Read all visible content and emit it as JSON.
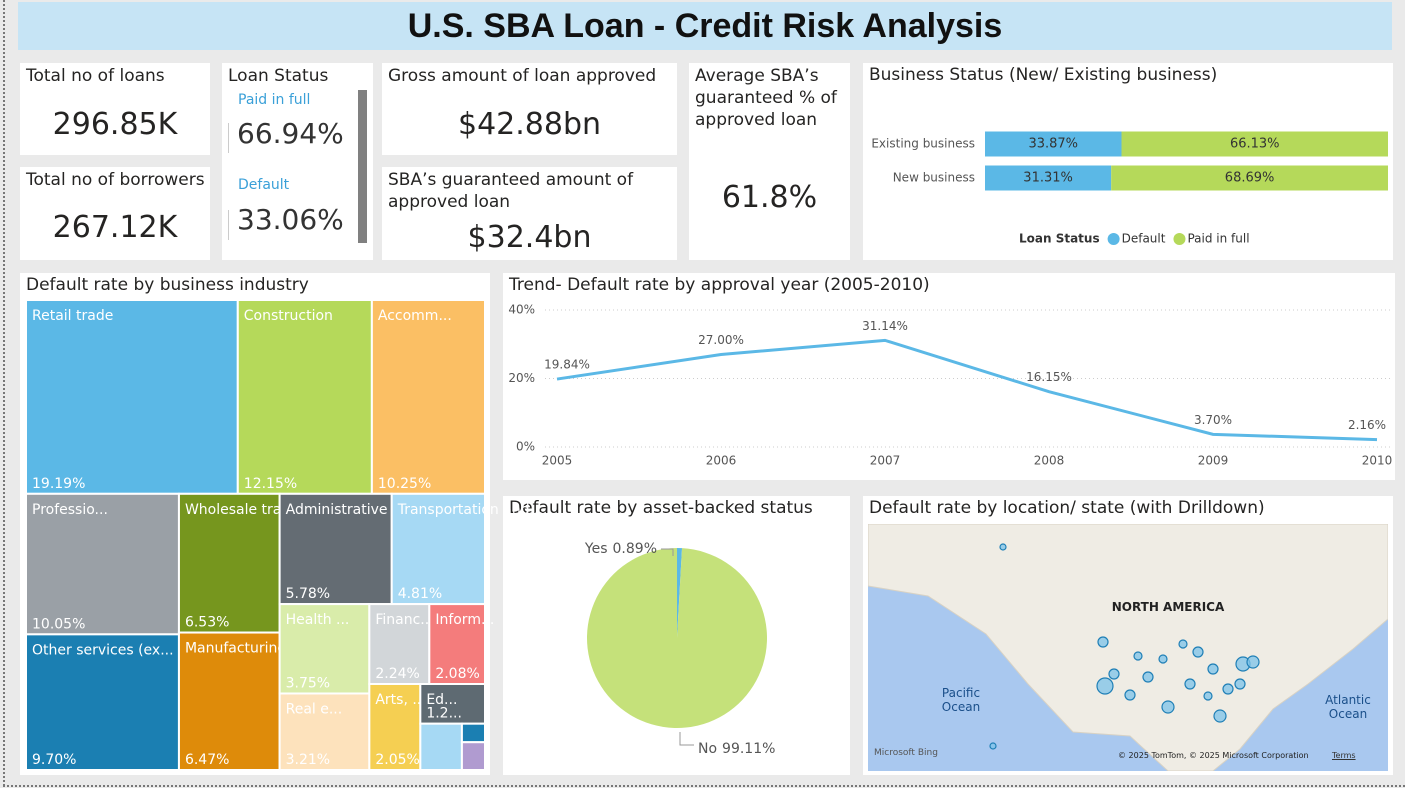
{
  "title": "U.S. SBA Loan - Credit Risk Analysis",
  "cards": [
    {
      "label": "Total no of loans",
      "value": "296.85K"
    },
    {
      "label": "Total no of borrowers",
      "value": "267.12K"
    },
    {
      "label": "Gross amount of loan approved",
      "value": "$42.88bn"
    },
    {
      "label": "SBA’s guaranteed amount of approved loan",
      "value": "$32.4bn"
    },
    {
      "label": "Average SBA’s guaranteed % of approved loan",
      "value": "61.8%"
    }
  ],
  "loan_status": {
    "title": "Loan Status",
    "items": [
      {
        "label": "Paid in full",
        "value": "66.94%"
      },
      {
        "label": "Default",
        "value": "33.06%"
      }
    ]
  },
  "chart_data": [
    {
      "type": "bar",
      "title": "Business Status (New/ Existing business)",
      "categories": [
        "Existing business",
        "New business"
      ],
      "legend_title": "Loan Status",
      "series": [
        {
          "name": "Default",
          "color": "#5bb8e6",
          "values": [
            33.87,
            31.31
          ],
          "value_labels": [
            "33.87%",
            "31.31%"
          ]
        },
        {
          "name": "Paid in full",
          "color": "#b5d95a",
          "values": [
            66.13,
            68.69
          ],
          "value_labels": [
            "66.13%",
            "68.69%"
          ]
        }
      ]
    },
    {
      "type": "treemap",
      "title": "Default rate by business industry",
      "categories": [
        "Retail trade",
        "Construction",
        "Accomm...",
        "Professio...",
        "Other services (ex...",
        "Wholesale trade",
        "Manufacturing",
        "Administrative and ...",
        "Transportation and ...",
        "Health ...",
        "Real e...",
        "Financ...",
        "Inform...",
        "Arts, ...",
        "Ed...",
        null,
        null,
        null
      ],
      "values": [
        19.19,
        12.15,
        10.25,
        10.05,
        9.7,
        6.53,
        6.47,
        5.78,
        4.81,
        3.75,
        3.21,
        2.24,
        2.08,
        2.05,
        1.2,
        0.9,
        0.2,
        0.3
      ],
      "value_labels": [
        "19.19%",
        "12.15%",
        "10.25%",
        "10.05%",
        "9.70%",
        "6.53%",
        "6.47%",
        "5.78%",
        "4.81%",
        "3.75%",
        "3.21%",
        "2.24%",
        "2.08%",
        "2.05%",
        "1.2...",
        null,
        null,
        null
      ],
      "colors": [
        "#5bb8e6",
        "#b5d95a",
        "#fbbf64",
        "#9aa0a6",
        "#1b7fb2",
        "#76961e",
        "#de8b0a",
        "#646c73",
        "#a6d9f4",
        "#d9ecaa",
        "#fde2bc",
        "#d2d6d9",
        "#f47c7c",
        "#f5cf52",
        "#5e6a72",
        "#a6d9f4",
        "#1b7fb2",
        "#b09bd0"
      ]
    },
    {
      "type": "line",
      "title": "Trend- Default rate by approval year (2005-2010)",
      "x": [
        2005,
        2006,
        2007,
        2008,
        2009,
        2010
      ],
      "values": [
        19.84,
        27.0,
        31.14,
        16.15,
        3.7,
        2.16
      ],
      "value_labels": [
        "19.84%",
        "27.00%",
        "31.14%",
        "16.15%",
        "3.70%",
        "2.16%"
      ],
      "color": "#5bb8e6",
      "xlim": [
        2005,
        2010
      ],
      "xticks": [
        2005,
        2006,
        2007,
        2008,
        2009,
        2010
      ],
      "ylim": [
        0,
        40
      ],
      "yticks": [
        {
          "value": 0,
          "label": "0%"
        },
        {
          "value": 20,
          "label": "20%"
        },
        {
          "value": 40,
          "label": "40%"
        }
      ],
      "grid": true
    },
    {
      "type": "pie",
      "title": "Default rate by asset-backed status",
      "categories": [
        "Yes",
        "No"
      ],
      "values": [
        0.89,
        99.11
      ],
      "value_labels": [
        "0.89%",
        "99.11%"
      ],
      "colors": [
        "#5bb8e6",
        "#c5e17a"
      ]
    }
  ],
  "map": {
    "title": "Default rate by location/ state (with Drilldown)",
    "continent": "NORTH AMERICA",
    "oceans": [
      "Pacific Ocean",
      "Atlantic Ocean"
    ],
    "brand": "Microsoft Bing",
    "copyright": "© 2025 TomTom, © 2025 Microsoft Corporation",
    "terms": "Terms"
  }
}
